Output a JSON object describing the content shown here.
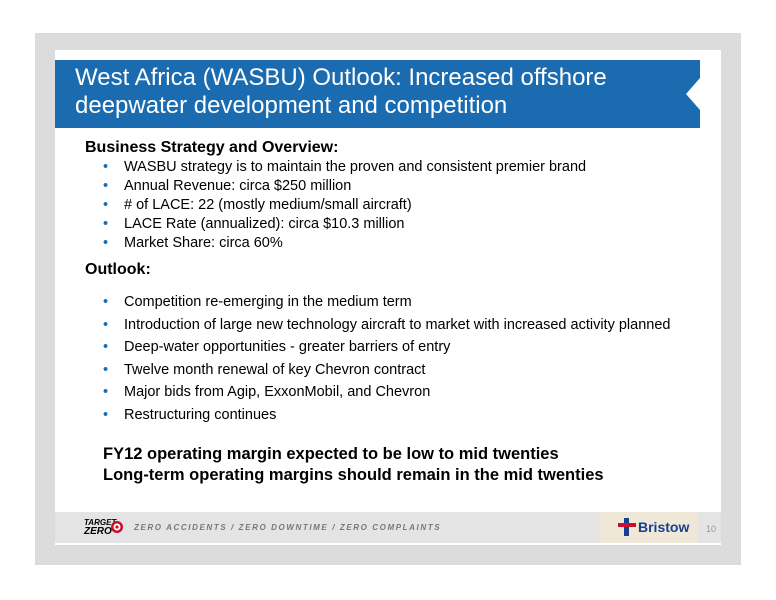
{
  "title": "West Africa (WASBU) Outlook: Increased offshore deepwater development and competition",
  "sections": [
    {
      "heading": "Business Strategy and Overview:",
      "bullets": [
        "WASBU strategy is to maintain the proven and consistent premier brand",
        "Annual Revenue: circa $250 million",
        "# of LACE: 22 (mostly medium/small aircraft)",
        "LACE Rate (annualized): circa $10.3 million",
        "Market Share: circa 60%"
      ]
    },
    {
      "heading": "Outlook:",
      "bullets": [
        "Competition re-emerging in the medium term",
        "Introduction of large new technology aircraft to market with increased activity planned",
        "Deep-water opportunities - greater barriers of entry",
        "Twelve month renewal of key Chevron contract",
        "Major bids from Agip, ExxonMobil, and Chevron",
        "Restructuring continues"
      ]
    }
  ],
  "conclusions": [
    "FY12 operating margin expected  to be low to mid twenties",
    "Long-term operating margins should remain in the mid twenties"
  ],
  "footer": {
    "logo_top": "TARGET",
    "logo_bottom": "ZERO",
    "tagline": "ZERO ACCIDENTS / ZERO DOWNTIME / ZERO COMPLAINTS",
    "brand": "Bristow",
    "page": "10"
  }
}
